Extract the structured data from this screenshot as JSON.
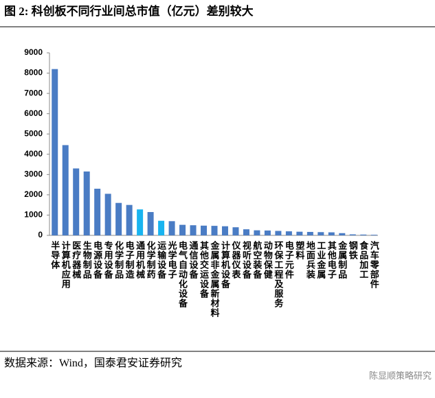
{
  "chart_data": {
    "type": "bar",
    "title": "图 2:    科创板不同行业间总市值（亿元）差别较大",
    "source": "数据来源：Wind，国泰君安证券研究",
    "watermark": "陈显顺策略研究",
    "categories": [
      "半导体",
      "计算机应用",
      "医疗器械",
      "生物制品",
      "电源设备",
      "专用设备",
      "化学制品",
      "电子制造",
      "通用机械",
      "化学制药",
      "运输设备",
      "光学电子",
      "电气自动化设备",
      "通信设备",
      "其他交运设备",
      "金属非金属新材料",
      "计算机设备",
      "仪器仪表",
      "视听设备",
      "航空装备",
      "动物保健",
      "环保工程及服务",
      "电子元件",
      "塑料",
      "地面兵装",
      "工业金属",
      "其他电子",
      "金属制品",
      "钢铁",
      "食品加工",
      "汽车零部件"
    ],
    "values": [
      8200,
      4450,
      3300,
      3150,
      2300,
      2050,
      1600,
      1500,
      1280,
      1150,
      720,
      700,
      520,
      500,
      480,
      470,
      450,
      400,
      300,
      250,
      240,
      220,
      200,
      180,
      170,
      160,
      150,
      110,
      50,
      40,
      30
    ],
    "colors": [
      "#4a7cc4",
      "#4a7cc4",
      "#4a7cc4",
      "#4a7cc4",
      "#4a7cc4",
      "#4a7cc4",
      "#4a7cc4",
      "#4a7cc4",
      "#18b4f0",
      "#4a7cc4",
      "#18b4f0",
      "#4a7cc4",
      "#4a7cc4",
      "#4a7cc4",
      "#4a7cc4",
      "#4a7cc4",
      "#4a7cc4",
      "#4a7cc4",
      "#4a7cc4",
      "#4a7cc4",
      "#4a7cc4",
      "#4a7cc4",
      "#4a7cc4",
      "#4a7cc4",
      "#4a7cc4",
      "#4a7cc4",
      "#4a7cc4",
      "#4a7cc4",
      "#4a7cc4",
      "#4a7cc4",
      "#4a7cc4"
    ],
    "ylim": [
      0,
      9000
    ],
    "yticks": [
      0,
      1000,
      2000,
      3000,
      4000,
      5000,
      6000,
      7000,
      8000,
      9000
    ],
    "grid": false
  }
}
